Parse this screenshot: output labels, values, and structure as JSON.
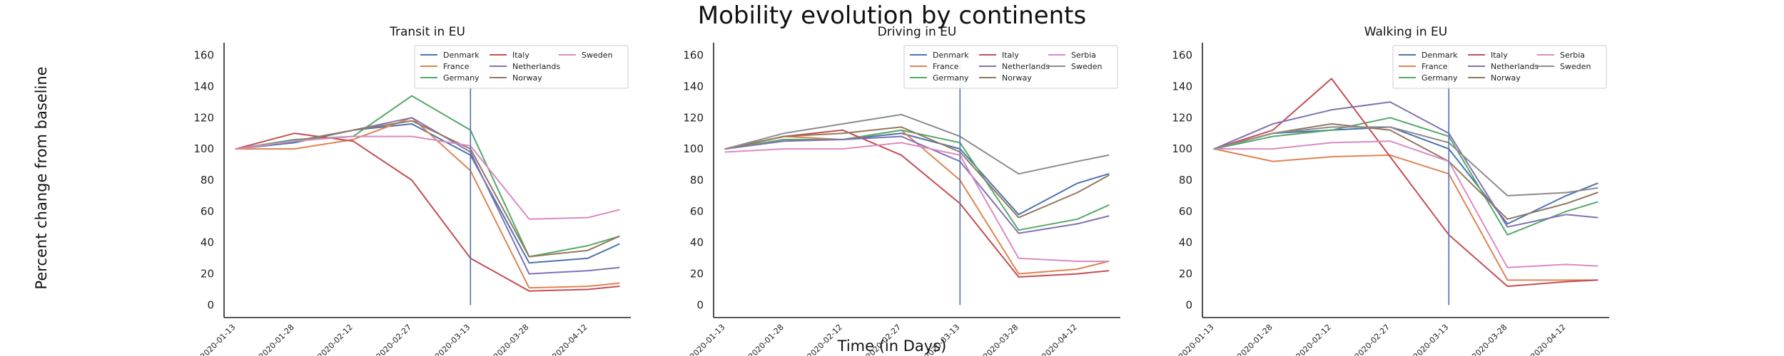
{
  "figure": {
    "title": "Mobility evolution by continents",
    "ylabel": "Percent change from baseline",
    "xlabel": "Time (in Days)"
  },
  "colors": {
    "Denmark": "#4c72b0",
    "France": "#dd8452",
    "Germany": "#55a868",
    "Italy": "#c44e52",
    "Netherlands": "#8172b3",
    "Norway": "#937860",
    "Sweden": "#da8bc3",
    "Serbia": "#da8bc3",
    "Sweden_grey": "#8c8c8c",
    "vline": "#4c72b0",
    "axis": "#222222"
  },
  "chart_data": [
    {
      "type": "line",
      "title": "Transit in EU",
      "x_dates": [
        "2020-01-13",
        "2020-01-28",
        "2020-02-12",
        "2020-02-27",
        "2020-03-13",
        "2020-03-28",
        "2020-04-12",
        "2020-04-20"
      ],
      "x_tick_labels": [
        "2020-01-13",
        "2020-01-28",
        "2020-02-12",
        "2020-02-27",
        "2020-03-13",
        "2020-03-28",
        "2020-04-12"
      ],
      "ylim": [
        -8,
        168
      ],
      "yticks": [
        0,
        20,
        40,
        60,
        80,
        100,
        120,
        140,
        160
      ],
      "vline": "2020-03-13",
      "legend": {
        "position": "upper right",
        "ncol": 3
      },
      "grid": false,
      "series": [
        {
          "name": "Denmark",
          "color": "Denmark",
          "values": [
            100,
            104,
            112,
            116,
            96,
            27,
            30,
            39
          ]
        },
        {
          "name": "France",
          "color": "France",
          "values": [
            100,
            100,
            106,
            120,
            86,
            11,
            12,
            14
          ]
        },
        {
          "name": "Germany",
          "color": "Germany",
          "values": [
            100,
            106,
            108,
            134,
            112,
            31,
            38,
            44
          ]
        },
        {
          "name": "Italy",
          "color": "Italy",
          "values": [
            100,
            110,
            105,
            80,
            30,
            9,
            10,
            12
          ]
        },
        {
          "name": "Netherlands",
          "color": "Netherlands",
          "values": [
            100,
            105,
            112,
            120,
            98,
            20,
            22,
            24
          ]
        },
        {
          "name": "Norway",
          "color": "Norway",
          "values": [
            100,
            105,
            112,
            118,
            100,
            31,
            35,
            44
          ]
        },
        {
          "name": "Sweden",
          "color": "Sweden",
          "values": [
            100,
            105,
            108,
            108,
            102,
            55,
            56,
            61
          ]
        }
      ]
    },
    {
      "type": "line",
      "title": "Driving in EU",
      "x_dates": [
        "2020-01-13",
        "2020-01-28",
        "2020-02-12",
        "2020-02-27",
        "2020-03-13",
        "2020-03-28",
        "2020-04-12",
        "2020-04-20"
      ],
      "x_tick_labels": [
        "2020-01-13",
        "2020-01-28",
        "2020-02-12",
        "2020-02-27",
        "2020-03-13",
        "2020-03-28",
        "2020-04-12"
      ],
      "ylim": [
        -8,
        168
      ],
      "yticks": [
        0,
        20,
        40,
        60,
        80,
        100,
        120,
        140,
        160
      ],
      "vline": "2020-03-13",
      "legend": {
        "position": "upper right",
        "ncol": 3
      },
      "grid": false,
      "series": [
        {
          "name": "Denmark",
          "color": "Denmark",
          "values": [
            100,
            106,
            106,
            110,
            100,
            58,
            78,
            84
          ]
        },
        {
          "name": "France",
          "color": "France",
          "values": [
            100,
            108,
            106,
            112,
            80,
            20,
            23,
            28
          ]
        },
        {
          "name": "Germany",
          "color": "Germany",
          "values": [
            100,
            106,
            106,
            112,
            104,
            48,
            55,
            64
          ]
        },
        {
          "name": "Italy",
          "color": "Italy",
          "values": [
            100,
            108,
            112,
            96,
            65,
            18,
            20,
            22
          ]
        },
        {
          "name": "Netherlands",
          "color": "Netherlands",
          "values": [
            100,
            105,
            106,
            108,
            92,
            46,
            52,
            57
          ]
        },
        {
          "name": "Norway",
          "color": "Norway",
          "values": [
            100,
            108,
            110,
            114,
            98,
            56,
            72,
            83
          ]
        },
        {
          "name": "Serbia",
          "color": "Serbia",
          "values": [
            98,
            100,
            100,
            104,
            96,
            30,
            28,
            28
          ]
        },
        {
          "name": "Sweden",
          "color": "Sweden_grey",
          "values": [
            100,
            110,
            116,
            122,
            108,
            84,
            92,
            96
          ]
        }
      ]
    },
    {
      "type": "line",
      "title": "Walking in EU",
      "x_dates": [
        "2020-01-13",
        "2020-01-28",
        "2020-02-12",
        "2020-02-27",
        "2020-03-13",
        "2020-03-28",
        "2020-04-12",
        "2020-04-20"
      ],
      "x_tick_labels": [
        "2020-01-13",
        "2020-01-28",
        "2020-02-12",
        "2020-02-27",
        "2020-03-13",
        "2020-03-28",
        "2020-04-12"
      ],
      "ylim": [
        -8,
        168
      ],
      "yticks": [
        0,
        20,
        40,
        60,
        80,
        100,
        120,
        140,
        160
      ],
      "vline": "2020-03-13",
      "legend": {
        "position": "upper right",
        "ncol": 3
      },
      "grid": false,
      "series": [
        {
          "name": "Denmark",
          "color": "Denmark",
          "values": [
            100,
            110,
            112,
            114,
            100,
            52,
            70,
            78
          ]
        },
        {
          "name": "France",
          "color": "France",
          "values": [
            100,
            92,
            95,
            96,
            84,
            16,
            16,
            16
          ]
        },
        {
          "name": "Germany",
          "color": "Germany",
          "values": [
            100,
            108,
            112,
            120,
            108,
            45,
            60,
            66
          ]
        },
        {
          "name": "Italy",
          "color": "Italy",
          "values": [
            100,
            112,
            145,
            95,
            45,
            12,
            15,
            16
          ]
        },
        {
          "name": "Netherlands",
          "color": "Netherlands",
          "values": [
            100,
            116,
            125,
            130,
            110,
            50,
            58,
            56
          ]
        },
        {
          "name": "Norway",
          "color": "Norway",
          "values": [
            100,
            110,
            116,
            112,
            92,
            55,
            65,
            72
          ]
        },
        {
          "name": "Serbia",
          "color": "Serbia",
          "values": [
            100,
            100,
            104,
            105,
            92,
            24,
            26,
            25
          ]
        },
        {
          "name": "Sweden",
          "color": "Sweden_grey",
          "values": [
            100,
            110,
            114,
            114,
            104,
            70,
            72,
            75
          ]
        }
      ]
    }
  ]
}
